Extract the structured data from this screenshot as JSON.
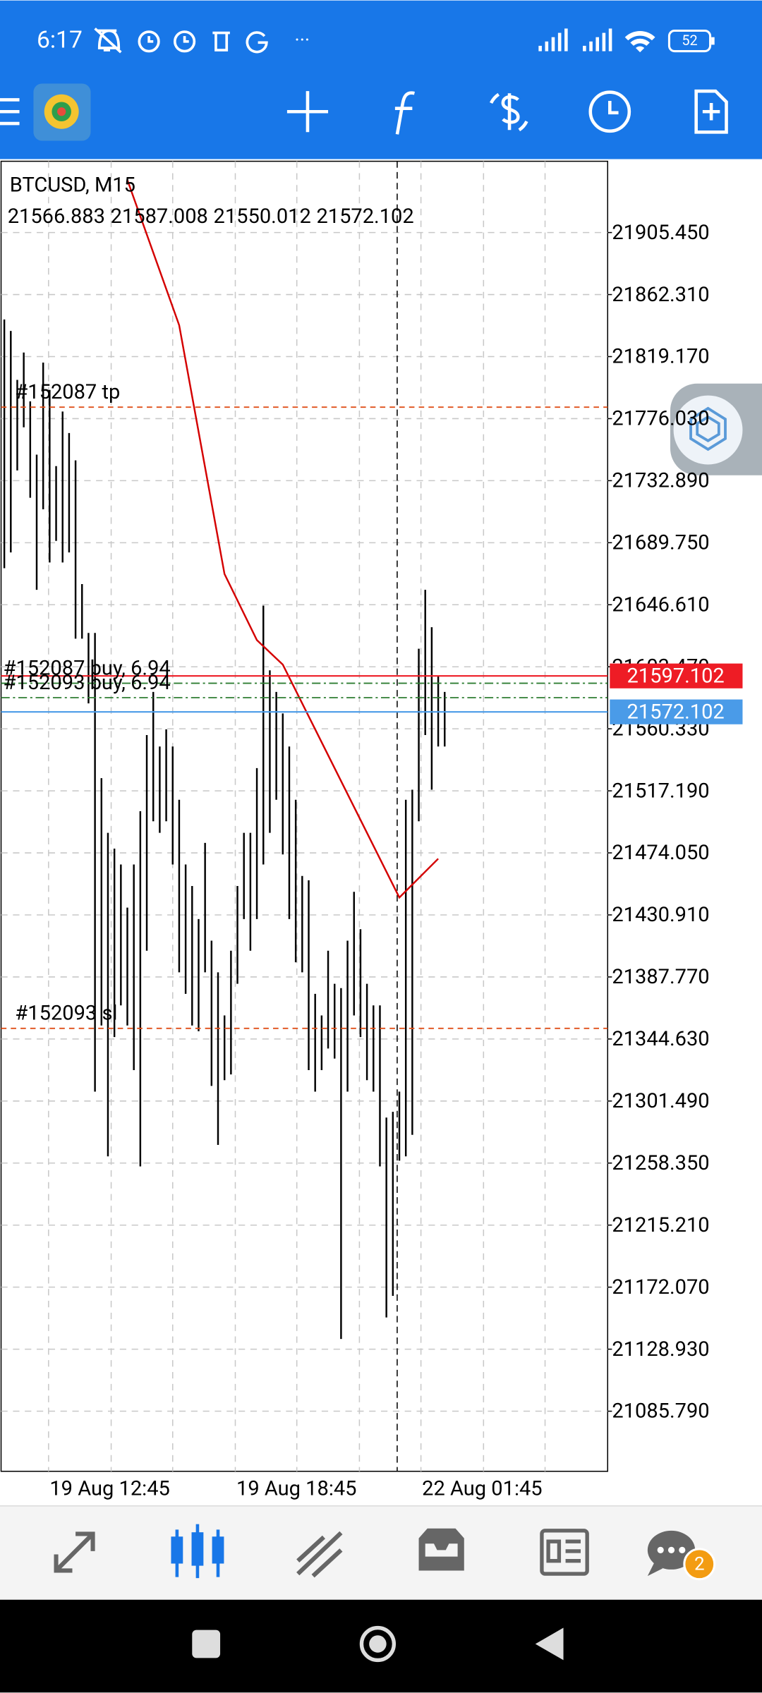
{
  "status_bar": {
    "time": "6:17",
    "battery": "52"
  },
  "chart": {
    "symbol": "BTCUSD, M15",
    "ohlc": [
      21566.883,
      21587.008,
      21550.012,
      21572.102
    ],
    "ylim": [
      21044,
      21955
    ],
    "yticks": [
      {
        "value": 21905.45,
        "label": "21905.450"
      },
      {
        "value": 21862.31,
        "label": "21862.310"
      },
      {
        "value": 21819.17,
        "label": "21819.170"
      },
      {
        "value": 21776.03,
        "label": "21776.030"
      },
      {
        "value": 21732.89,
        "label": "21732.890"
      },
      {
        "value": 21689.75,
        "label": "21689.750"
      },
      {
        "value": 21646.61,
        "label": "21646.610"
      },
      {
        "value": 21603.47,
        "label": "21603.470"
      },
      {
        "value": 21560.33,
        "label": "21560.330"
      },
      {
        "value": 21517.19,
        "label": "21517.190"
      },
      {
        "value": 21474.05,
        "label": "21474.050"
      },
      {
        "value": 21430.91,
        "label": "21430.910"
      },
      {
        "value": 21387.77,
        "label": "21387.770"
      },
      {
        "value": 21344.63,
        "label": "21344.630"
      },
      {
        "value": 21301.49,
        "label": "21301.490"
      },
      {
        "value": 21258.35,
        "label": "21258.350"
      },
      {
        "value": 21215.21,
        "label": "21215.210"
      },
      {
        "value": 21172.07,
        "label": "21172.070"
      },
      {
        "value": 21128.93,
        "label": "21128.930"
      },
      {
        "value": 21085.79,
        "label": "21085.790"
      }
    ],
    "time_labels": [
      "19 Aug 12:45",
      "19 Aug 18:45",
      "22 Aug 01:45"
    ],
    "bars": {
      "high": [
        21845,
        21837,
        21803,
        21822,
        21788,
        21751,
        21815,
        21796,
        21743,
        21781,
        21766,
        21747,
        21661,
        21627,
        21627,
        21526,
        21488,
        21477,
        21466,
        21436,
        21466,
        21503,
        21556,
        21586,
        21548,
        21560,
        21548,
        21511,
        21466,
        21451,
        21428,
        21481,
        21413,
        21391,
        21361,
        21406,
        21451,
        21488,
        21488,
        21533,
        21646,
        21601,
        21586,
        21571,
        21548,
        21511,
        21458,
        21455,
        21376,
        21361,
        21406,
        21383,
        21380,
        21413,
        21447,
        21421,
        21383,
        21368,
        21368,
        21290,
        21294,
        21308,
        21511,
        21518,
        21616,
        21657,
        21631,
        21597,
        21586
      ],
      "low": [
        21672,
        21683,
        21740,
        21770,
        21721,
        21657,
        21713,
        21676,
        21691,
        21676,
        21683,
        21623,
        21623,
        21578,
        21308,
        21354,
        21263,
        21346,
        21368,
        21354,
        21323,
        21256,
        21406,
        21496,
        21488,
        21496,
        21466,
        21391,
        21376,
        21354,
        21350,
        21391,
        21312,
        21271,
        21316,
        21320,
        21383,
        21428,
        21406,
        21428,
        21466,
        21488,
        21511,
        21473,
        21428,
        21398,
        21391,
        21323,
        21308,
        21323,
        21338,
        21331,
        21136,
        21308,
        21361,
        21346,
        21316,
        21308,
        21256,
        21151,
        21166,
        21260,
        21263,
        21278,
        21496,
        21556,
        21518,
        21548,
        21548
      ],
      "color": "#000000"
    },
    "ma": {
      "x": [
        19,
        27,
        34,
        39,
        43,
        48,
        53,
        58,
        61,
        67
      ],
      "values": [
        21942,
        21841,
        21668,
        21622,
        21605,
        21560,
        21515,
        21470,
        21443,
        21470
      ],
      "color": "#d40000"
    },
    "levels": [
      {
        "name": "#152087 tp",
        "value": 21784,
        "color": "#e0501a",
        "style": "dash"
      },
      {
        "name": "#152087 buy, 6.94",
        "value": 21592,
        "color": "#2e7d32",
        "style": "dashdot"
      },
      {
        "name": "#152093 buy, 6.94",
        "value": 21582,
        "color": "#2e7d32",
        "style": "dashdot"
      },
      {
        "name": "#152093 sl",
        "value": 21352,
        "color": "#e0501a",
        "style": "dash"
      }
    ],
    "price_tags": [
      {
        "value": 21597.102,
        "color": "#ee1c25"
      },
      {
        "value": 21572.102,
        "color": "#4a9be8"
      }
    ]
  },
  "nav": {
    "badge": "2"
  }
}
